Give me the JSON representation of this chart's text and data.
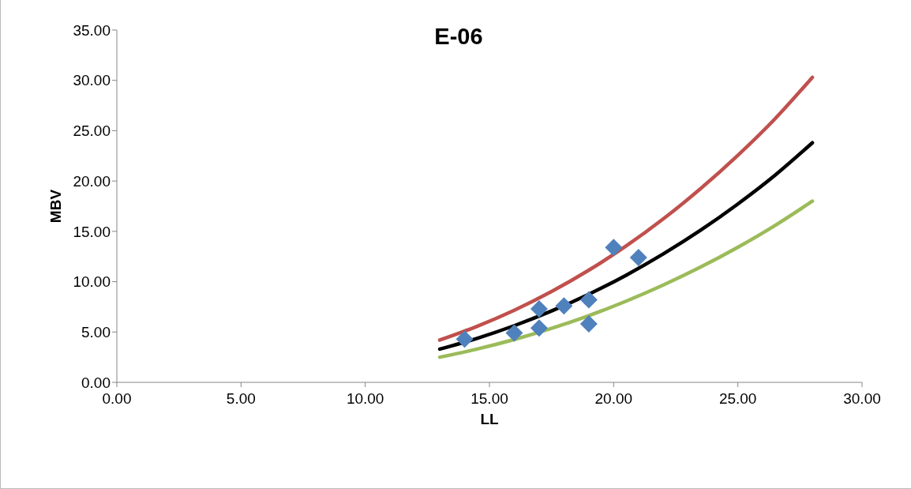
{
  "chart_data": {
    "type": "scatter",
    "title": "E-06",
    "xlabel": "LL",
    "ylabel": "MBV",
    "xlim": [
      0,
      30
    ],
    "xticks": [
      {
        "value": 0,
        "label": "0.00"
      },
      {
        "value": 5,
        "label": "5.00"
      },
      {
        "value": 10,
        "label": "10.00"
      },
      {
        "value": 15,
        "label": "15.00"
      },
      {
        "value": 20,
        "label": "20.00"
      },
      {
        "value": 25,
        "label": "25.00"
      },
      {
        "value": 30,
        "label": "30.00"
      }
    ],
    "ylim": [
      0,
      35
    ],
    "yticks": [
      {
        "value": 0,
        "label": "0.00"
      },
      {
        "value": 5,
        "label": "5.00"
      },
      {
        "value": 10,
        "label": "10.00"
      },
      {
        "value": 15,
        "label": "15.00"
      },
      {
        "value": 20,
        "label": "20.00"
      },
      {
        "value": 25,
        "label": "25.00"
      },
      {
        "value": 30,
        "label": "30.00"
      },
      {
        "value": 35,
        "label": "35.00"
      }
    ],
    "grid": false,
    "legend": false,
    "series": [
      {
        "type": "line",
        "color": "#c0504d",
        "marker": "none",
        "x": [
          13,
          14.5,
          16,
          17.5,
          19,
          20.5,
          22,
          23.5,
          25,
          26.5,
          28
        ],
        "values": [
          4.2,
          5.56,
          7.16,
          9.02,
          11.14,
          13.54,
          16.24,
          19.24,
          22.55,
          26.19,
          30.3
        ]
      },
      {
        "type": "line",
        "color": "#000000",
        "marker": "none",
        "x": [
          13,
          14.5,
          16,
          17.5,
          19,
          20.5,
          22,
          23.5,
          25,
          26.5,
          28
        ],
        "values": [
          3.3,
          4.37,
          5.63,
          7.09,
          8.75,
          10.64,
          12.76,
          15.11,
          17.72,
          20.58,
          23.8
        ]
      },
      {
        "type": "line",
        "color": "#9bbb59",
        "marker": "none",
        "x": [
          13,
          14.5,
          16,
          17.5,
          19,
          20.5,
          22,
          23.5,
          25,
          26.5,
          28
        ],
        "values": [
          2.5,
          3.31,
          4.26,
          5.37,
          6.63,
          8.06,
          9.67,
          11.45,
          13.42,
          15.59,
          18.0
        ]
      },
      {
        "color": "#4f81bd",
        "marker": "diamond",
        "x": [
          14,
          16,
          17,
          17,
          18,
          19,
          19,
          20,
          21
        ],
        "values": [
          4.3,
          4.9,
          7.3,
          5.4,
          7.6,
          8.2,
          5.8,
          13.4,
          12.4
        ]
      }
    ]
  }
}
